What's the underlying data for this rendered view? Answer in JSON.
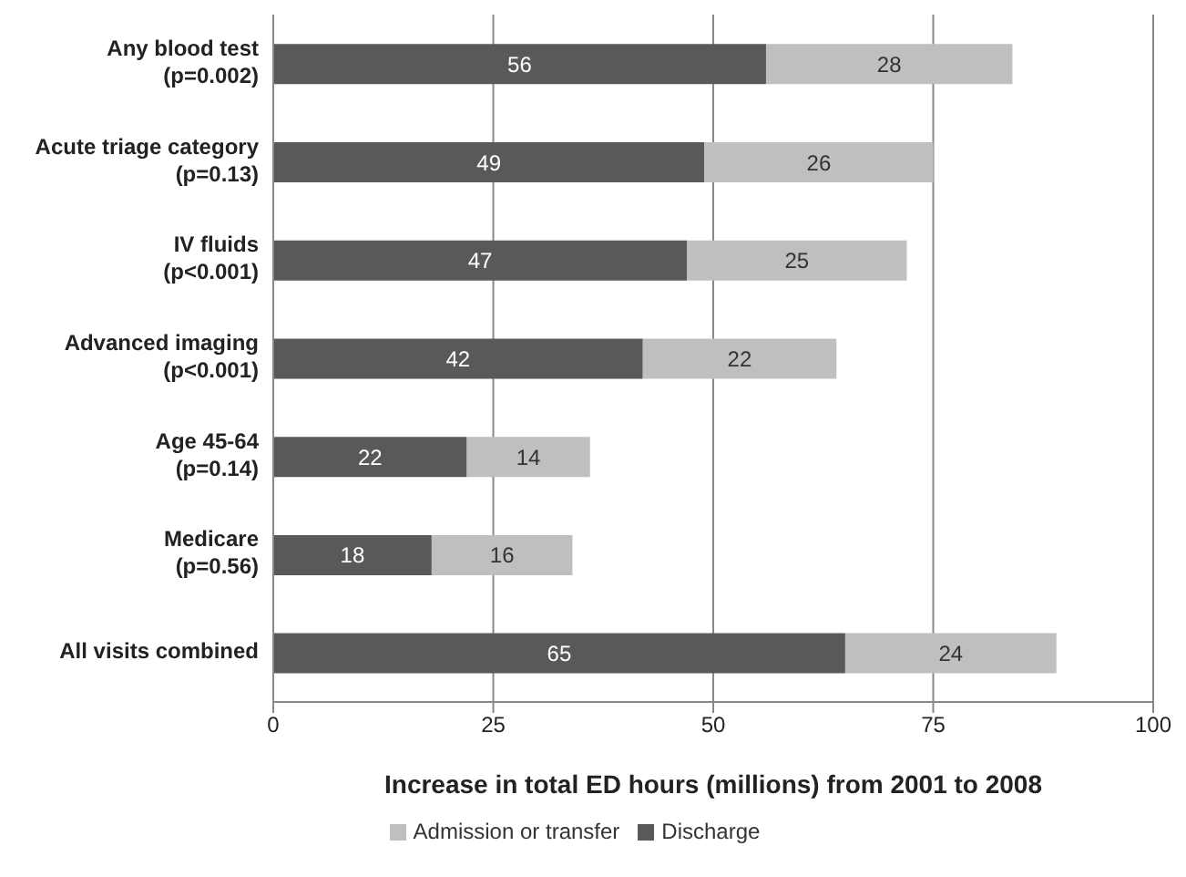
{
  "chart_data": {
    "type": "bar",
    "orientation": "horizontal",
    "stacked": true,
    "categories": [
      "Any blood test\n(p=0.002)",
      "Acute triage category\n(p=0.13)",
      "IV fluids\n(p<0.001)",
      "Advanced imaging\n(p<0.001)",
      "Age 45-64\n(p=0.14)",
      "Medicare\n(p=0.56)",
      "All visits  combined"
    ],
    "series": [
      {
        "name": "Discharge",
        "color": "#595959",
        "values": [
          56,
          49,
          47,
          42,
          22,
          18,
          65
        ]
      },
      {
        "name": "Admission or transfer",
        "color": "#bfbfbf",
        "values": [
          28,
          26,
          25,
          22,
          14,
          16,
          24
        ]
      }
    ],
    "xlabel": "Increase in total ED hours (millions) from 2001 to 2008",
    "xlim": [
      0,
      100
    ],
    "xticks": [
      0,
      25,
      50,
      75,
      100
    ],
    "grid": "x",
    "legend": "bottom",
    "data_labels": true
  }
}
